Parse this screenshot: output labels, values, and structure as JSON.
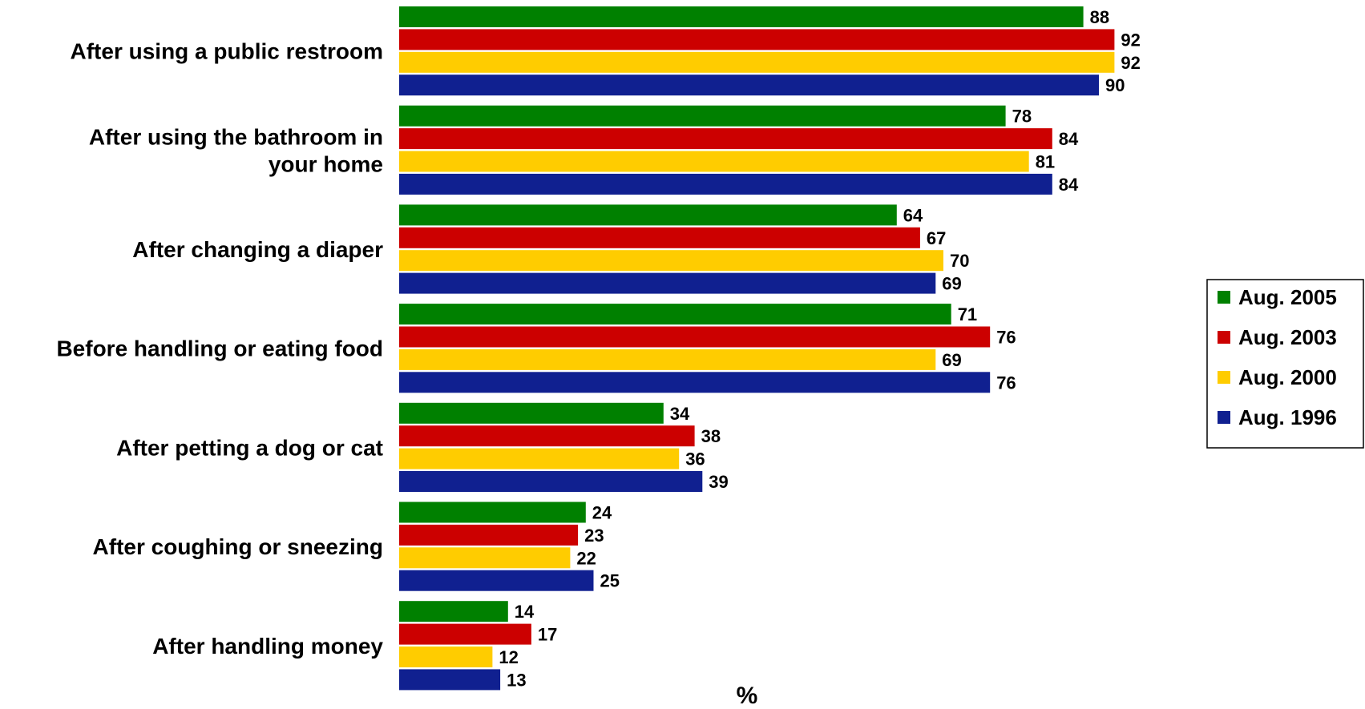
{
  "chart_data": {
    "type": "bar",
    "orientation": "horizontal",
    "categories": [
      [
        "After using a public restroom"
      ],
      [
        "After using the bathroom in",
        "your home"
      ],
      [
        "After changing a diaper"
      ],
      [
        "Before handling or eating food"
      ],
      [
        "After petting a dog or cat"
      ],
      [
        "After coughing or sneezing"
      ],
      [
        "After handling money"
      ]
    ],
    "series": [
      {
        "name": "Aug. 2005",
        "color": "#008000",
        "values": [
          88,
          78,
          64,
          71,
          34,
          24,
          14
        ]
      },
      {
        "name": "Aug. 2003",
        "color": "#cc0000",
        "values": [
          92,
          84,
          67,
          76,
          38,
          23,
          17
        ]
      },
      {
        "name": "Aug. 2000",
        "color": "#ffcc00",
        "values": [
          92,
          81,
          70,
          69,
          36,
          22,
          12
        ]
      },
      {
        "name": "Aug. 1996",
        "color": "#102090",
        "values": [
          90,
          84,
          69,
          76,
          39,
          25,
          13
        ]
      }
    ],
    "xlabel": "%",
    "ylabel": "",
    "xlim": [
      0,
      100
    ],
    "grid": false,
    "legend": "right"
  }
}
